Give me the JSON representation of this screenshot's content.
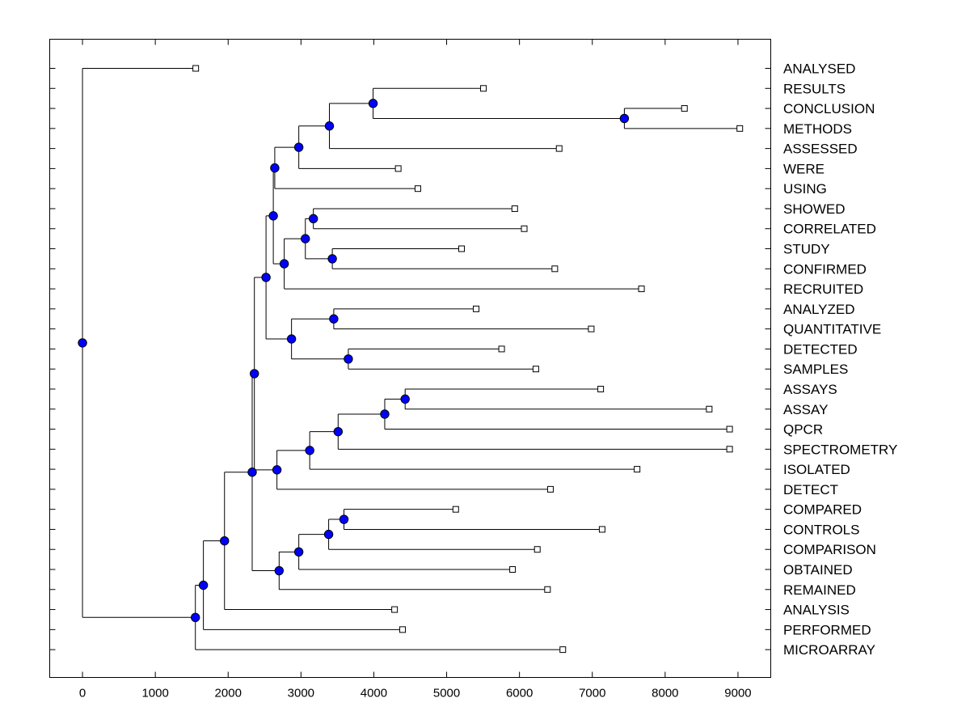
{
  "chart_data": {
    "type": "dendrogram",
    "title": "",
    "xlabel": "",
    "ylabel": "",
    "xlim": [
      -450,
      9450
    ],
    "xticks": [
      0,
      1000,
      2000,
      3000,
      4000,
      5000,
      6000,
      7000,
      8000,
      9000
    ],
    "node_color": "#0000ff",
    "leaves": [
      {
        "label": "ANALYSED",
        "x": 1555
      },
      {
        "label": "RESULTS",
        "x": 5505
      },
      {
        "label": "CONCLUSION",
        "x": 8265
      },
      {
        "label": "METHODS",
        "x": 9025
      },
      {
        "label": "ASSESSED",
        "x": 6545
      },
      {
        "label": "WERE",
        "x": 4335
      },
      {
        "label": "USING",
        "x": 4605
      },
      {
        "label": "SHOWED",
        "x": 5935
      },
      {
        "label": "CORRELATED",
        "x": 6065
      },
      {
        "label": "STUDY",
        "x": 5205
      },
      {
        "label": "CONFIRMED",
        "x": 6485
      },
      {
        "label": "RECRUITED",
        "x": 7675
      },
      {
        "label": "ANALYZED",
        "x": 5405
      },
      {
        "label": "QUANTITATIVE",
        "x": 6985
      },
      {
        "label": "DETECTED",
        "x": 5755
      },
      {
        "label": "SAMPLES",
        "x": 6225
      },
      {
        "label": "ASSAYS",
        "x": 7115
      },
      {
        "label": "ASSAY",
        "x": 8605
      },
      {
        "label": "QPCR",
        "x": 8885
      },
      {
        "label": "SPECTROMETRY",
        "x": 8885
      },
      {
        "label": "ISOLATED",
        "x": 7615
      },
      {
        "label": "DETECT",
        "x": 6425
      },
      {
        "label": "COMPARED",
        "x": 5125
      },
      {
        "label": "CONTROLS",
        "x": 7135
      },
      {
        "label": "COMPARISON",
        "x": 6245
      },
      {
        "label": "OBTAINED",
        "x": 5905
      },
      {
        "label": "REMAINED",
        "x": 6385
      },
      {
        "label": "ANALYSIS",
        "x": 4285
      },
      {
        "label": "PERFORMED",
        "x": 4395
      },
      {
        "label": "MICROARRAY",
        "x": 6595
      }
    ],
    "merges": [
      {
        "id": "n1",
        "height": 7440,
        "children": [
          "CONCLUSION",
          "METHODS"
        ]
      },
      {
        "id": "n2",
        "height": 3990,
        "children": [
          "RESULTS",
          "n1"
        ]
      },
      {
        "id": "n3",
        "height": 3390,
        "children": [
          "n2",
          "ASSESSED"
        ]
      },
      {
        "id": "n4",
        "height": 2970,
        "children": [
          "n3",
          "WERE"
        ]
      },
      {
        "id": "n5",
        "height": 2640,
        "children": [
          "n4",
          "USING"
        ]
      },
      {
        "id": "n6",
        "height": 3170,
        "children": [
          "SHOWED",
          "CORRELATED"
        ]
      },
      {
        "id": "n7",
        "height": 3430,
        "children": [
          "STUDY",
          "CONFIRMED"
        ]
      },
      {
        "id": "n8",
        "height": 3060,
        "children": [
          "n6",
          "n7"
        ]
      },
      {
        "id": "n9",
        "height": 2770,
        "children": [
          "n8",
          "RECRUITED"
        ]
      },
      {
        "id": "n10",
        "height": 2620,
        "children": [
          "n5",
          "n9"
        ]
      },
      {
        "id": "n11",
        "height": 3450,
        "children": [
          "ANALYZED",
          "QUANTITATIVE"
        ]
      },
      {
        "id": "n12",
        "height": 3650,
        "children": [
          "DETECTED",
          "SAMPLES"
        ]
      },
      {
        "id": "n13",
        "height": 2870,
        "children": [
          "n11",
          "n12"
        ]
      },
      {
        "id": "n14",
        "height": 2520,
        "children": [
          "n10",
          "n13"
        ]
      },
      {
        "id": "n15",
        "height": 4430,
        "children": [
          "ASSAYS",
          "ASSAY"
        ]
      },
      {
        "id": "n16",
        "height": 4150,
        "children": [
          "n15",
          "QPCR"
        ]
      },
      {
        "id": "n17",
        "height": 3510,
        "children": [
          "n16",
          "SPECTROMETRY"
        ]
      },
      {
        "id": "n18",
        "height": 3120,
        "children": [
          "n17",
          "ISOLATED"
        ]
      },
      {
        "id": "n19",
        "height": 2670,
        "children": [
          "n18",
          "DETECT"
        ]
      },
      {
        "id": "n20",
        "height": 2360,
        "children": [
          "n14",
          "n19"
        ]
      },
      {
        "id": "n21",
        "height": 3590,
        "children": [
          "COMPARED",
          "CONTROLS"
        ]
      },
      {
        "id": "n22",
        "height": 3380,
        "children": [
          "n21",
          "COMPARISON"
        ]
      },
      {
        "id": "n23",
        "height": 2970,
        "children": [
          "n22",
          "OBTAINED"
        ]
      },
      {
        "id": "n24",
        "height": 2700,
        "children": [
          "n23",
          "REMAINED"
        ]
      },
      {
        "id": "n25",
        "height": 2330,
        "children": [
          "n20",
          "n24"
        ]
      },
      {
        "id": "n26",
        "height": 1950,
        "children": [
          "n25",
          "ANALYSIS"
        ]
      },
      {
        "id": "n27",
        "height": 1660,
        "children": [
          "n26",
          "PERFORMED"
        ]
      },
      {
        "id": "n28",
        "height": 1550,
        "children": [
          "n27",
          "MICROARRAY"
        ]
      },
      {
        "id": "n29",
        "height": 0,
        "children": [
          "ANALYSED",
          "n28"
        ]
      }
    ]
  }
}
